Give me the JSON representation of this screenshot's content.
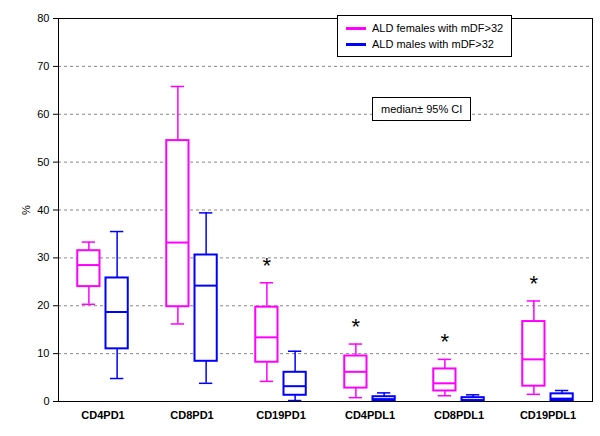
{
  "chart_data": {
    "type": "box",
    "categories": [
      "CD4PD1",
      "CD8PD1",
      "CD19PD1",
      "CD4PDL1",
      "CD8PDL1",
      "CD19PDL1"
    ],
    "series": [
      {
        "name": "ALD females with mDF>32",
        "color": "#ff00ff",
        "whisker_low": [
          20.3,
          16.2,
          4.2,
          0.8,
          1.2,
          1.5
        ],
        "q1": [
          24,
          19.8,
          8.2,
          2.8,
          2.2,
          3.2
        ],
        "median": [
          28.5,
          33.2,
          13.4,
          6.2,
          3.8,
          8.8
        ],
        "q3": [
          31.5,
          54.5,
          19.7,
          9.5,
          6.8,
          16.7
        ],
        "whisker_high": [
          33.3,
          65.8,
          24.8,
          12,
          8.8,
          21
        ]
      },
      {
        "name": "ALD males with mDF>32",
        "color": "#0000ff",
        "whisker_low": [
          4.8,
          3.8,
          0.2,
          0,
          0,
          0
        ],
        "q1": [
          11,
          8.4,
          1.3,
          0.2,
          0.1,
          0.2
        ],
        "median": [
          18.7,
          24.2,
          3.2,
          0.5,
          0.3,
          0.6
        ],
        "q3": [
          25.8,
          30.6,
          6.1,
          1,
          0.8,
          1.6
        ],
        "whisker_high": [
          35.5,
          39.4,
          10.5,
          1.8,
          1.4,
          2.3
        ]
      }
    ],
    "ylim": [
      0,
      80
    ],
    "yticks": [
      0,
      10,
      20,
      30,
      40,
      50,
      60,
      70,
      80
    ],
    "y_label": "%",
    "grid": true,
    "legend": "top-right",
    "annotations": [
      {
        "text": "median± 95% CI"
      },
      {
        "text": "*",
        "category": "CD19PD1",
        "series": "ALD females with mDF>32"
      },
      {
        "text": "*",
        "category": "CD4PDL1",
        "series": "ALD females with mDF>32"
      },
      {
        "text": "*",
        "category": "CD8PDL1",
        "series": "ALD females with mDF>32"
      },
      {
        "text": "*",
        "category": "CD19PDL1",
        "series": "ALD females with mDF>32"
      }
    ]
  }
}
